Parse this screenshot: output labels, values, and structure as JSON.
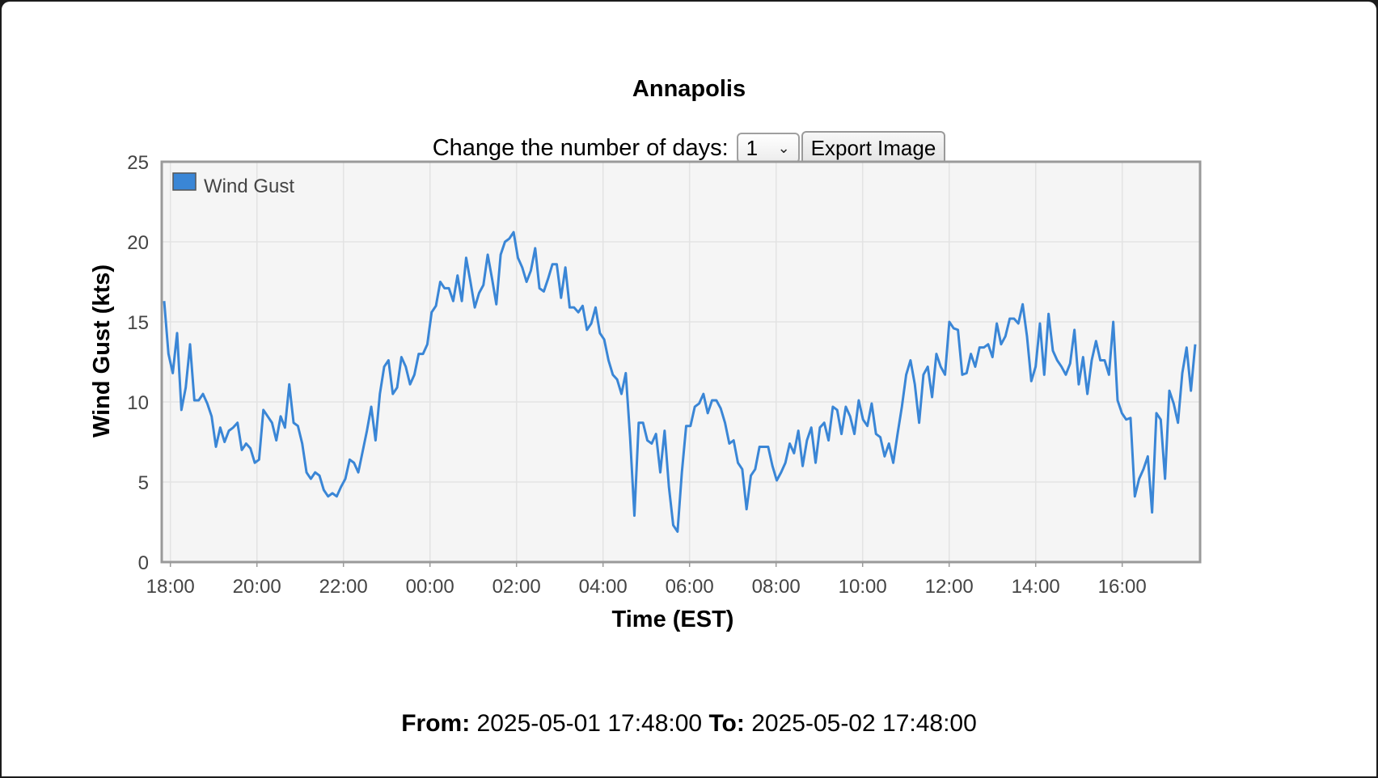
{
  "page": {
    "title": "Annapolis",
    "days_label": "Change the number of days:",
    "days_value": "1",
    "export_label": "Export Image",
    "from_label": "From:",
    "from_value": "2025-05-01 17:48:00",
    "to_label": "To:",
    "to_value": "2025-05-02 17:48:00"
  },
  "chart_data": {
    "type": "line",
    "title": "",
    "xlabel": "Time (EST)",
    "ylabel": "Wind Gust (kts)",
    "ylim": [
      0,
      25
    ],
    "yticks": [
      0,
      5,
      10,
      15,
      20,
      25
    ],
    "xticks": [
      "18:00",
      "20:00",
      "22:00",
      "00:00",
      "02:00",
      "04:00",
      "06:00",
      "08:00",
      "10:00",
      "12:00",
      "14:00",
      "16:00"
    ],
    "x_start": "2025-05-01 17:48:00",
    "x_end": "2025-05-02 17:48:00",
    "grid": true,
    "legend_position": "top-left",
    "series": [
      {
        "name": "Wind Gust",
        "color": "#3a86d6",
        "values": [
          16.3,
          13.0,
          11.8,
          14.3,
          9.5,
          10.9,
          13.6,
          10.1,
          10.1,
          10.5,
          9.9,
          9.1,
          7.2,
          8.4,
          7.5,
          8.2,
          8.4,
          8.7,
          7.0,
          7.4,
          7.1,
          6.2,
          6.4,
          9.5,
          9.1,
          8.7,
          7.6,
          9.1,
          8.4,
          11.1,
          8.7,
          8.5,
          7.4,
          5.6,
          5.2,
          5.6,
          5.4,
          4.5,
          4.1,
          4.3,
          4.1,
          4.7,
          5.2,
          6.4,
          6.2,
          5.6,
          6.9,
          8.2,
          9.7,
          7.6,
          10.5,
          12.2,
          12.6,
          10.5,
          10.9,
          12.8,
          12.2,
          11.1,
          11.7,
          13.0,
          13.0,
          13.6,
          15.6,
          16.0,
          17.5,
          17.1,
          17.1,
          16.3,
          17.9,
          16.3,
          19.0,
          17.5,
          15.9,
          16.8,
          17.3,
          19.2,
          17.7,
          16.1,
          19.2,
          20.0,
          20.2,
          20.6,
          19.0,
          18.4,
          17.5,
          18.2,
          19.6,
          17.1,
          16.9,
          17.7,
          18.6,
          18.6,
          16.5,
          18.4,
          15.9,
          15.9,
          15.6,
          16.0,
          14.5,
          14.9,
          15.9,
          14.3,
          13.9,
          12.6,
          11.7,
          11.4,
          10.5,
          11.8,
          7.8,
          2.9,
          8.7,
          8.7,
          7.6,
          7.4,
          8.0,
          5.6,
          8.2,
          4.7,
          2.3,
          1.9,
          5.6,
          8.5,
          8.5,
          9.7,
          9.9,
          10.5,
          9.3,
          10.1,
          10.1,
          9.6,
          8.7,
          7.4,
          7.6,
          6.2,
          5.8,
          3.3,
          5.4,
          5.8,
          7.2,
          7.2,
          7.2,
          6.0,
          5.1,
          5.6,
          6.2,
          7.4,
          6.8,
          8.2,
          6.0,
          7.6,
          8.4,
          6.2,
          8.4,
          8.7,
          7.6,
          9.7,
          9.5,
          8.0,
          9.7,
          9.1,
          8.0,
          10.1,
          8.9,
          8.5,
          9.9,
          8.0,
          7.8,
          6.6,
          7.4,
          6.2,
          8.0,
          9.7,
          11.7,
          12.6,
          11.1,
          8.7,
          11.7,
          12.2,
          10.3,
          13.0,
          12.2,
          11.7,
          15.0,
          14.6,
          14.5,
          11.7,
          11.8,
          13.0,
          12.2,
          13.4,
          13.4,
          13.6,
          12.8,
          14.9,
          13.6,
          14.1,
          15.2,
          15.2,
          14.9,
          16.1,
          14.1,
          11.3,
          12.2,
          14.9,
          11.7,
          15.5,
          13.2,
          12.6,
          12.2,
          11.7,
          12.4,
          14.5,
          11.1,
          12.8,
          10.5,
          12.6,
          13.8,
          12.6,
          12.6,
          11.7,
          15.0,
          10.1,
          9.3,
          8.9,
          9.0,
          4.1,
          5.2,
          5.8,
          6.6,
          3.1,
          9.3,
          8.9,
          5.2,
          10.7,
          9.9,
          8.7,
          11.8,
          13.4,
          10.7,
          13.6
        ]
      }
    ]
  }
}
